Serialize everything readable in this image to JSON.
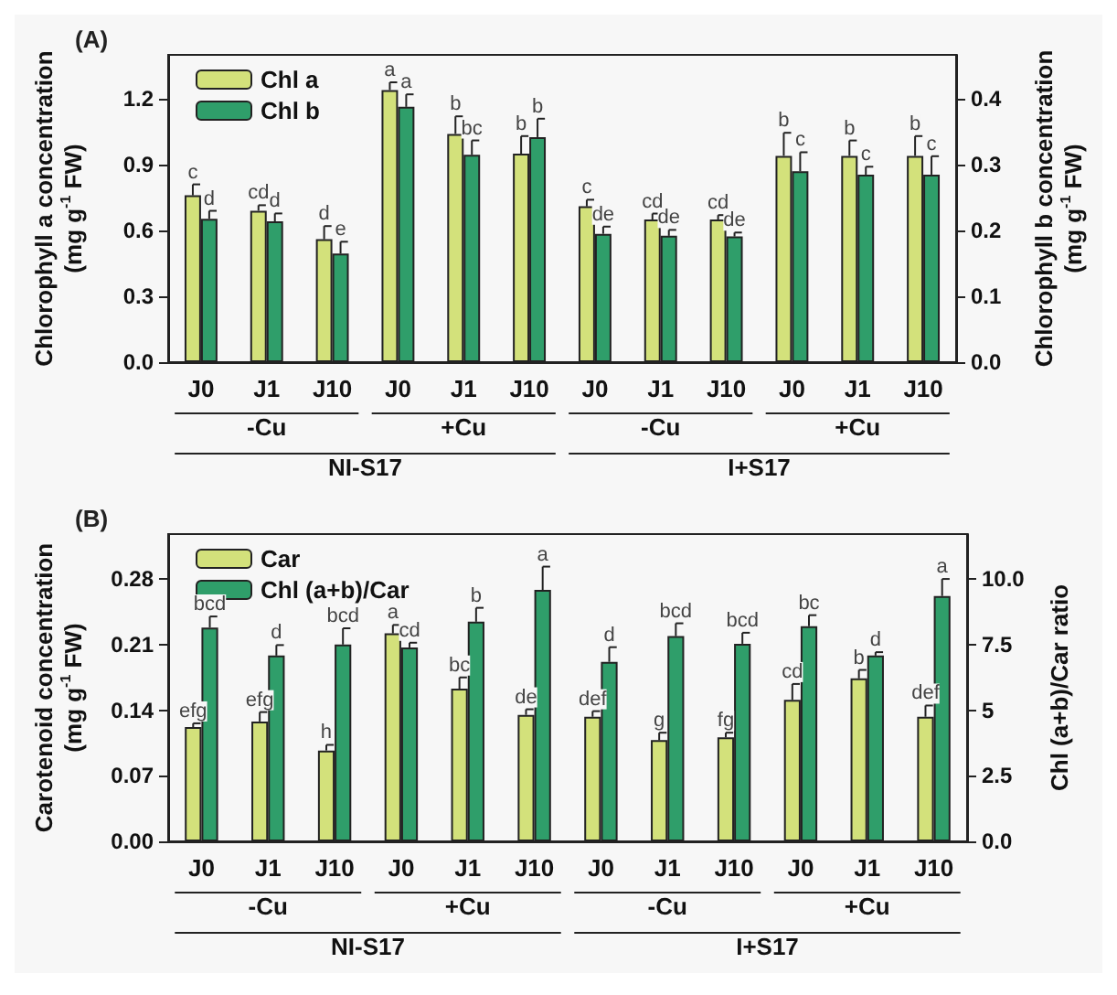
{
  "chart_data": [
    {
      "type": "bar",
      "title": "(A)",
      "ylabel": "Chlorophyll a concentration\n(mg g$^{-1}$ FW)",
      "y2label": "Chlorophyll b concentration\n(mg g$^{-1}$ FW)",
      "categories": [
        "J0",
        "J1",
        "J10",
        "J0",
        "J1",
        "J10",
        "J0",
        "J1",
        "J10",
        "J0",
        "J1",
        "J10"
      ],
      "series": [
        {
          "name": "Chl a",
          "color": "#d3e17b",
          "values": [
            0.76,
            0.69,
            0.56,
            1.24,
            1.04,
            0.95,
            0.71,
            0.65,
            0.65,
            0.94,
            0.94,
            0.94
          ],
          "errors": [
            0.05,
            0.025,
            0.06,
            0.035,
            0.08,
            0.08,
            0.03,
            0.027,
            0.02,
            0.105,
            0.07,
            0.09
          ],
          "value_labels": [
            "c",
            "cd",
            "d",
            "a",
            "b",
            "b",
            "c",
            "cd",
            "cd",
            "b",
            "b",
            "b"
          ]
        },
        {
          "name": "Chl b",
          "color": "#2f9e6a",
          "axis": "y2",
          "values": [
            0.218,
            0.214,
            0.165,
            0.388,
            0.315,
            0.342,
            0.195,
            0.192,
            0.191,
            0.29,
            0.285,
            0.285
          ],
          "errors": [
            0.012,
            0.012,
            0.018,
            0.019,
            0.022,
            0.028,
            0.011,
            0.009,
            0.006,
            0.029,
            0.012,
            0.028
          ],
          "value_labels": [
            "d",
            "d",
            "e",
            "a",
            "bc",
            "b",
            "de",
            "de",
            "de",
            "c",
            "c",
            "c"
          ]
        }
      ],
      "ylim": [
        0,
        1.4
      ],
      "yticks": [
        {
          "value": 0,
          "label": "0.0"
        },
        {
          "value": 0.3,
          "label": "0.3"
        },
        {
          "value": 0.6,
          "label": "0.6"
        },
        {
          "value": 0.9,
          "label": "0.9"
        },
        {
          "value": 1.2,
          "label": "1.2"
        }
      ],
      "y2lim": [
        0,
        0.467
      ],
      "y2ticks": [
        {
          "value": 0,
          "label": "0.0"
        },
        {
          "value": 0.1,
          "label": "0.1"
        },
        {
          "value": 0.2,
          "label": "0.2"
        },
        {
          "value": 0.3,
          "label": "0.3"
        },
        {
          "value": 0.4,
          "label": "0.4"
        }
      ],
      "legend": "top left",
      "grid": false,
      "annotations": [
        "-Cu",
        "+Cu",
        "-Cu",
        "+Cu",
        "NI-S17",
        "I+S17"
      ]
    },
    {
      "type": "bar",
      "title": "(B)",
      "ylabel": "Carotenoid concentration\n(mg g$^{-1}$ FW)",
      "y2label": "Chl (a+b)/Car ratio",
      "categories": [
        "J0",
        "J1",
        "J10",
        "J0",
        "J1",
        "J10",
        "J0",
        "J1",
        "J10",
        "J0",
        "J1",
        "J10"
      ],
      "series": [
        {
          "name": "Car",
          "color": "#d3e17b",
          "values": [
            0.122,
            0.128,
            0.097,
            0.222,
            0.163,
            0.135,
            0.133,
            0.108,
            0.111,
            0.151,
            0.174,
            0.133
          ],
          "errors": [
            0.004,
            0.01,
            0.006,
            0.009,
            0.012,
            0.006,
            0.006,
            0.008,
            0.005,
            0.017,
            0.009,
            0.012
          ],
          "value_labels": [
            "efg",
            "efg",
            "h",
            "a",
            "bc",
            "de",
            "def",
            "g",
            "fg",
            "cd",
            "b",
            "def"
          ]
        },
        {
          "name": "Chl (a+b)/Car",
          "color": "#2f9e6a",
          "axis": "y2",
          "values": [
            8.15,
            7.08,
            7.5,
            7.39,
            8.37,
            9.58,
            6.84,
            7.82,
            7.53,
            8.2,
            7.08,
            9.35
          ],
          "errors": [
            0.42,
            0.4,
            0.62,
            0.18,
            0.53,
            0.89,
            0.56,
            0.49,
            0.42,
            0.42,
            0.13,
            0.65
          ],
          "value_labels": [
            "bcd",
            "d",
            "bcd",
            "cd",
            "b",
            "a",
            "d",
            "bcd",
            "bcd",
            "bc",
            "d",
            "a"
          ]
        }
      ],
      "ylim": [
        0,
        0.328
      ],
      "yticks": [
        {
          "value": 0,
          "label": "0.00"
        },
        0.07,
        0.14,
        0.21,
        0.28
      ],
      "y2lim": [
        0,
        11.71
      ],
      "y2ticks": [
        {
          "value": 0,
          "label": "0.0"
        },
        2.5,
        5,
        7.5,
        {
          "value": 10,
          "label": "10.0"
        }
      ],
      "legend": "top left",
      "grid": false,
      "annotations": [
        "-Cu",
        "+Cu",
        "-Cu",
        "+Cu",
        "NI-S17",
        "I+S17"
      ]
    }
  ]
}
